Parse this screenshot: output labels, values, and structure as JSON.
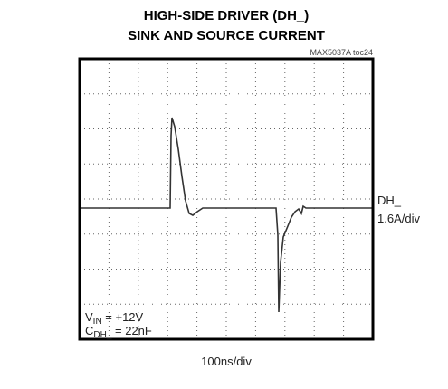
{
  "header": {
    "title_lines": [
      "HIGH-SIDE DRIVER (DH_)",
      "SINK AND SOURCE CURRENT"
    ],
    "figure_id": "MAX5037A toc24"
  },
  "channel": {
    "name": "DH_",
    "scale": "1.6A/div"
  },
  "conditions": [
    {
      "symbol": "V",
      "subscript": "IN",
      "rest": " = +12V"
    },
    {
      "symbol": "C",
      "subscript": "DH_",
      "rest": " = 22nF"
    }
  ],
  "timebase": "100ns/div"
}
